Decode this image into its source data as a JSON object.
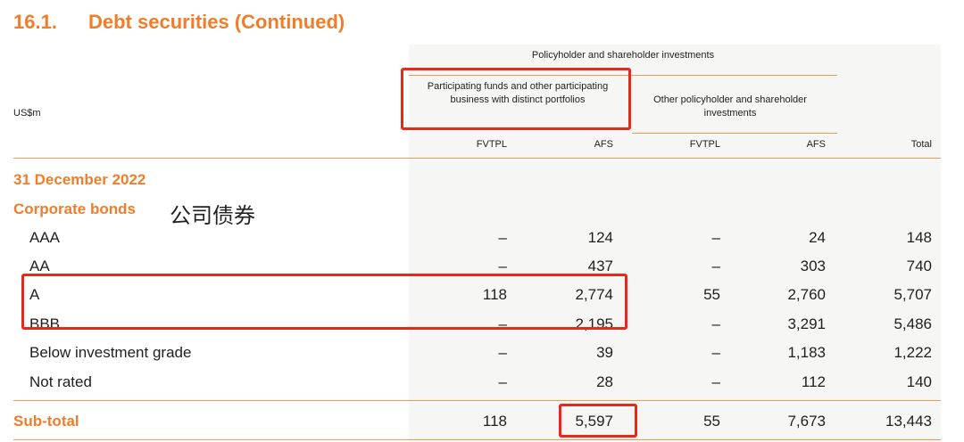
{
  "section": {
    "number": "16.1.",
    "title": "Debt securities (Continued)"
  },
  "headers": {
    "units": "US$m",
    "group": "Policyholder and shareholder investments",
    "sub1": "Participating funds and other participating business with distinct portfolios",
    "sub2": "Other policyholder and shareholder investments",
    "cols": [
      "FVTPL",
      "AFS",
      "FVTPL",
      "AFS",
      "Total"
    ]
  },
  "date_label": "31 December 2022",
  "category_label": "Corporate bonds",
  "annotation": "公司债券",
  "rows": [
    {
      "label": "AAA",
      "values": [
        "–",
        "124",
        "–",
        "24",
        "148"
      ]
    },
    {
      "label": "AA",
      "values": [
        "–",
        "437",
        "–",
        "303",
        "740"
      ]
    },
    {
      "label": "A",
      "values": [
        "118",
        "2,774",
        "55",
        "2,760",
        "5,707"
      ]
    },
    {
      "label": "BBB",
      "values": [
        "–",
        "2,195",
        "–",
        "3,291",
        "5,486"
      ]
    },
    {
      "label": "Below investment grade",
      "values": [
        "–",
        "39",
        "–",
        "1,183",
        "1,222"
      ]
    },
    {
      "label": "Not rated",
      "values": [
        "–",
        "28",
        "–",
        "112",
        "140"
      ]
    }
  ],
  "subtotal": {
    "label": "Sub-total",
    "values": [
      "118",
      "5,597",
      "55",
      "7,673",
      "13,443"
    ]
  },
  "colors": {
    "accent": "#ef7d2a",
    "highlight": "#e8281c",
    "shade": "#f6f6f4"
  }
}
